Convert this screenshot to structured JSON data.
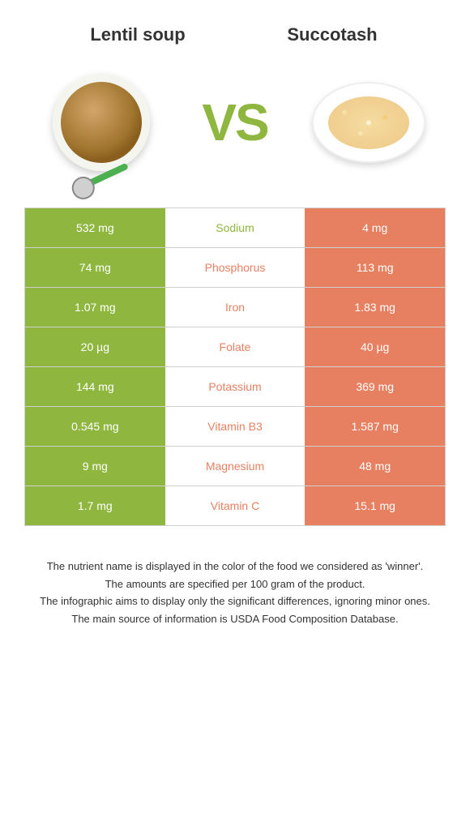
{
  "food1": {
    "name": "Lentil soup",
    "color": "#8fb63f"
  },
  "food2": {
    "name": "Succotash",
    "color": "#e78061"
  },
  "vs": "VS",
  "rows": [
    {
      "left": "532 mg",
      "label": "Sodium",
      "right": "4 mg",
      "winner": "left"
    },
    {
      "left": "74 mg",
      "label": "Phosphorus",
      "right": "113 mg",
      "winner": "right"
    },
    {
      "left": "1.07 mg",
      "label": "Iron",
      "right": "1.83 mg",
      "winner": "right"
    },
    {
      "left": "20 µg",
      "label": "Folate",
      "right": "40 µg",
      "winner": "right"
    },
    {
      "left": "144 mg",
      "label": "Potassium",
      "right": "369 mg",
      "winner": "right"
    },
    {
      "left": "0.545 mg",
      "label": "Vitamin B3",
      "right": "1.587 mg",
      "winner": "right"
    },
    {
      "left": "9 mg",
      "label": "Magnesium",
      "right": "48 mg",
      "winner": "right"
    },
    {
      "left": "1.7 mg",
      "label": "Vitamin C",
      "right": "15.1 mg",
      "winner": "right"
    }
  ],
  "footer": [
    "The nutrient name is displayed in the color of the food we considered as 'winner'.",
    "The amounts are specified per 100 gram of the product.",
    "The infographic aims to display only the significant differences, ignoring minor ones.",
    "The main source of information is USDA Food Composition Database."
  ]
}
